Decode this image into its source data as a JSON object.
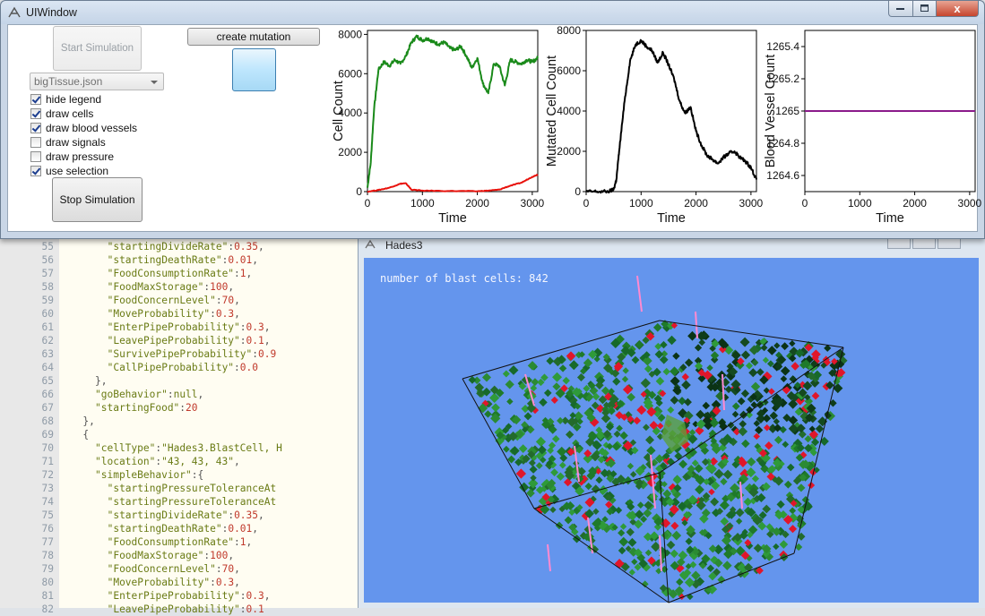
{
  "ui_window": {
    "title": "UIWindow",
    "start_button": "Start Simulation",
    "create_mutation_button": "create mutation",
    "stop_button": "Stop Simulation",
    "file_combo": "bigTissue.json",
    "checkboxes": [
      {
        "label": "hide legend",
        "checked": true
      },
      {
        "label": "draw cells",
        "checked": true
      },
      {
        "label": "draw blood vessels",
        "checked": true
      },
      {
        "label": "draw signals",
        "checked": false
      },
      {
        "label": "draw pressure",
        "checked": false
      },
      {
        "label": "use selection",
        "checked": true
      }
    ],
    "window_buttons": {
      "close": "x"
    }
  },
  "chart_data": [
    {
      "type": "line",
      "xlabel": "Time",
      "ylabel": "Cell Count",
      "xlim": [
        0,
        3100
      ],
      "ylim": [
        0,
        8200
      ],
      "xticks": [
        "0",
        "1000",
        "2000",
        "3000"
      ],
      "yticks": [
        "0",
        "2000",
        "4000",
        "6000",
        "8000"
      ],
      "series": [
        {
          "color": "#1a8a1a",
          "x": [
            0,
            60,
            120,
            200,
            300,
            400,
            500,
            600,
            700,
            800,
            900,
            1000,
            1100,
            1200,
            1300,
            1400,
            1500,
            1600,
            1700,
            1800,
            1900,
            2000,
            2100,
            2200,
            2300,
            2400,
            2500,
            2600,
            2700,
            2800,
            2900,
            3000,
            3100
          ],
          "y": [
            200,
            1500,
            4200,
            6200,
            6600,
            6400,
            6700,
            6500,
            6900,
            7600,
            7900,
            7700,
            7800,
            7600,
            7500,
            7600,
            7300,
            7200,
            7400,
            6900,
            6300,
            6800,
            5500,
            5000,
            6500,
            6400,
            5400,
            6700,
            6600,
            6500,
            6700,
            6600,
            6800
          ]
        },
        {
          "color": "#e8120c",
          "x": [
            0,
            200,
            400,
            600,
            700,
            800,
            1000,
            1500,
            2000,
            2200,
            2400,
            2600,
            2800,
            3000,
            3100
          ],
          "y": [
            0,
            80,
            200,
            400,
            420,
            100,
            50,
            30,
            20,
            50,
            100,
            300,
            450,
            750,
            870
          ]
        }
      ]
    },
    {
      "type": "line",
      "xlabel": "Time",
      "ylabel": "Mutated Cell Count",
      "xlim": [
        0,
        3100
      ],
      "ylim": [
        0,
        8000
      ],
      "xticks": [
        "0",
        "1000",
        "2000",
        "3000"
      ],
      "yticks": [
        "0",
        "2000",
        "4000",
        "6000",
        "8000"
      ],
      "series": [
        {
          "color": "#000000",
          "x": [
            0,
            200,
            400,
            500,
            550,
            600,
            700,
            800,
            900,
            1000,
            1100,
            1200,
            1300,
            1400,
            1500,
            1600,
            1700,
            1800,
            1900,
            2000,
            2100,
            2200,
            2300,
            2400,
            2500,
            2600,
            2700,
            2800,
            2900,
            3000,
            3100
          ],
          "y": [
            0,
            0,
            0,
            100,
            600,
            2000,
            4500,
            6500,
            7300,
            7500,
            7200,
            7000,
            6400,
            6900,
            6300,
            5600,
            4500,
            3900,
            4200,
            3000,
            2300,
            1800,
            1600,
            1400,
            1700,
            1900,
            2000,
            1700,
            1500,
            1200,
            600
          ]
        }
      ]
    },
    {
      "type": "line",
      "xlabel": "Time",
      "ylabel": "Blood Vessel Count",
      "xlim": [
        0,
        3100
      ],
      "ylim": [
        1264.5,
        1265.5
      ],
      "xticks": [
        "0",
        "1000",
        "2000",
        "3000"
      ],
      "yticks": [
        "1264.6",
        "1264.8",
        "1265",
        "1265.2",
        "1265.4"
      ],
      "series": [
        {
          "color": "#8a1a8a",
          "x": [
            0,
            3100
          ],
          "y": [
            1265,
            1265
          ]
        }
      ]
    }
  ],
  "hades_window": {
    "title": "Hades3",
    "overlay": "number of blast cells: 842",
    "background": "#6495ed"
  },
  "editor": {
    "lines": [
      {
        "n": "55",
        "indent": 10,
        "key": "\"startingDivideRate\"",
        "val": "0.35",
        "tail": ","
      },
      {
        "n": "56",
        "indent": 10,
        "key": "\"startingDeathRate\"",
        "val": "0.01",
        "tail": ","
      },
      {
        "n": "57",
        "indent": 10,
        "key": "\"FoodConsumptionRate\"",
        "val": "1",
        "tail": ","
      },
      {
        "n": "58",
        "indent": 10,
        "key": "\"FoodMaxStorage\"",
        "val": "100",
        "tail": ","
      },
      {
        "n": "59",
        "indent": 10,
        "key": "\"FoodConcernLevel\"",
        "val": "70",
        "tail": ","
      },
      {
        "n": "60",
        "indent": 10,
        "key": "\"MoveProbability\"",
        "val": "0.3",
        "tail": ","
      },
      {
        "n": "61",
        "indent": 10,
        "key": "\"EnterPipeProbability\"",
        "val": "0.3",
        "tail": ","
      },
      {
        "n": "62",
        "indent": 10,
        "key": "\"LeavePipeProbability\"",
        "val": "0.1",
        "tail": ","
      },
      {
        "n": "63",
        "indent": 10,
        "key": "\"SurvivePipeProbability\"",
        "val": "0.9",
        "tail": ""
      },
      {
        "n": "64",
        "indent": 10,
        "key": "\"CallPipeProbability\"",
        "val": "0.0",
        "tail": ""
      },
      {
        "n": "65",
        "indent": 8,
        "key": "",
        "val": "",
        "tail": "},"
      },
      {
        "n": "66",
        "indent": 8,
        "key": "\"goBehavior\"",
        "val": "null",
        "tail": ","
      },
      {
        "n": "67",
        "indent": 8,
        "key": "\"startingFood\"",
        "val": "20",
        "tail": ""
      },
      {
        "n": "68",
        "indent": 6,
        "key": "",
        "val": "",
        "tail": "},"
      },
      {
        "n": "69",
        "indent": 6,
        "key": "",
        "val": "",
        "tail": "{"
      },
      {
        "n": "70",
        "indent": 8,
        "key": "\"cellType\"",
        "val": "\"Hades3.BlastCell, H",
        "tail": ""
      },
      {
        "n": "71",
        "indent": 8,
        "key": "\"location\"",
        "val": "\"43, 43, 43\"",
        "tail": ","
      },
      {
        "n": "72",
        "indent": 8,
        "key": "\"simpleBehavior\"",
        "val": "",
        "tail": "{"
      },
      {
        "n": "73",
        "indent": 10,
        "key": "\"startingPressureToleranceAt",
        "val": "",
        "tail": ""
      },
      {
        "n": "74",
        "indent": 10,
        "key": "\"startingPressureToleranceAt",
        "val": "",
        "tail": ""
      },
      {
        "n": "75",
        "indent": 10,
        "key": "\"startingDivideRate\"",
        "val": "0.35",
        "tail": ","
      },
      {
        "n": "76",
        "indent": 10,
        "key": "\"startingDeathRate\"",
        "val": "0.01",
        "tail": ","
      },
      {
        "n": "77",
        "indent": 10,
        "key": "\"FoodConsumptionRate\"",
        "val": "1",
        "tail": ","
      },
      {
        "n": "78",
        "indent": 10,
        "key": "\"FoodMaxStorage\"",
        "val": "100",
        "tail": ","
      },
      {
        "n": "79",
        "indent": 10,
        "key": "\"FoodConcernLevel\"",
        "val": "70",
        "tail": ","
      },
      {
        "n": "80",
        "indent": 10,
        "key": "\"MoveProbability\"",
        "val": "0.3",
        "tail": ","
      },
      {
        "n": "81",
        "indent": 10,
        "key": "\"EnterPipeProbability\"",
        "val": "0.3",
        "tail": ","
      },
      {
        "n": "82",
        "indent": 10,
        "key": "\"LeavePipeProbability\"",
        "val": "0.1",
        "tail": ""
      }
    ]
  }
}
